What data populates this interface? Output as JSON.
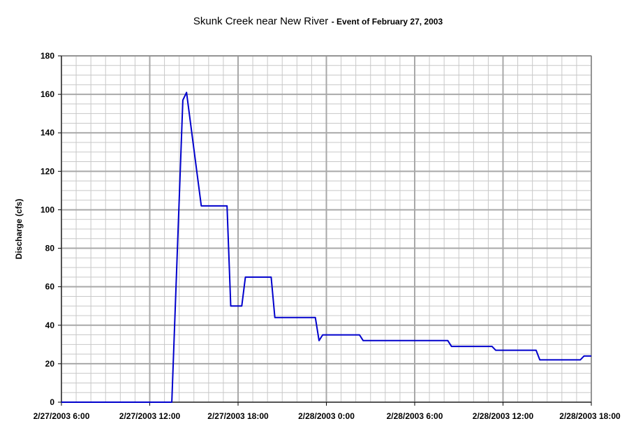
{
  "chart_data": {
    "type": "line",
    "title": "Skunk Creek near New River",
    "subtitle": "- Event of February 27, 2003",
    "xlabel": "",
    "ylabel": "Discharge (cfs)",
    "ylim": [
      0,
      180
    ],
    "y_ticks": [
      0,
      20,
      40,
      60,
      80,
      100,
      120,
      140,
      160,
      180
    ],
    "xlim": [
      "2/27/2003 6:00",
      "2/28/2003 18:00"
    ],
    "x_ticks": [
      "2/27/2003 6:00",
      "2/27/2003 12:00",
      "2/27/2003 18:00",
      "2/28/2003 0:00",
      "2/28/2003 6:00",
      "2/28/2003 12:00",
      "2/28/2003 18:00"
    ],
    "grid": true,
    "minor_grid_x": "1 hour",
    "minor_grid_y": 5,
    "legend": "none",
    "series": [
      {
        "color": "#0000cc",
        "x": [
          "2/27/2003 6:00",
          "2/27/2003 13:30",
          "2/27/2003 14:15",
          "2/27/2003 14:30",
          "2/27/2003 15:30",
          "2/27/2003 17:15",
          "2/27/2003 17:30",
          "2/27/2003 18:15",
          "2/27/2003 18:30",
          "2/27/2003 20:15",
          "2/27/2003 20:30",
          "2/27/2003 23:15",
          "2/27/2003 23:30",
          "2/27/2003 23:45",
          "2/28/2003 2:15",
          "2/28/2003 2:30",
          "2/28/2003 8:15",
          "2/28/2003 8:30",
          "2/28/2003 11:15",
          "2/28/2003 11:30",
          "2/28/2003 14:15",
          "2/28/2003 14:30",
          "2/28/2003 17:15",
          "2/28/2003 17:30",
          "2/28/2003 18:00"
        ],
        "y": [
          0,
          0,
          157,
          161,
          102,
          102,
          50,
          50,
          65,
          65,
          44,
          44,
          32,
          35,
          35,
          32,
          32,
          29,
          29,
          27,
          27,
          22,
          22,
          24,
          24
        ]
      }
    ]
  }
}
